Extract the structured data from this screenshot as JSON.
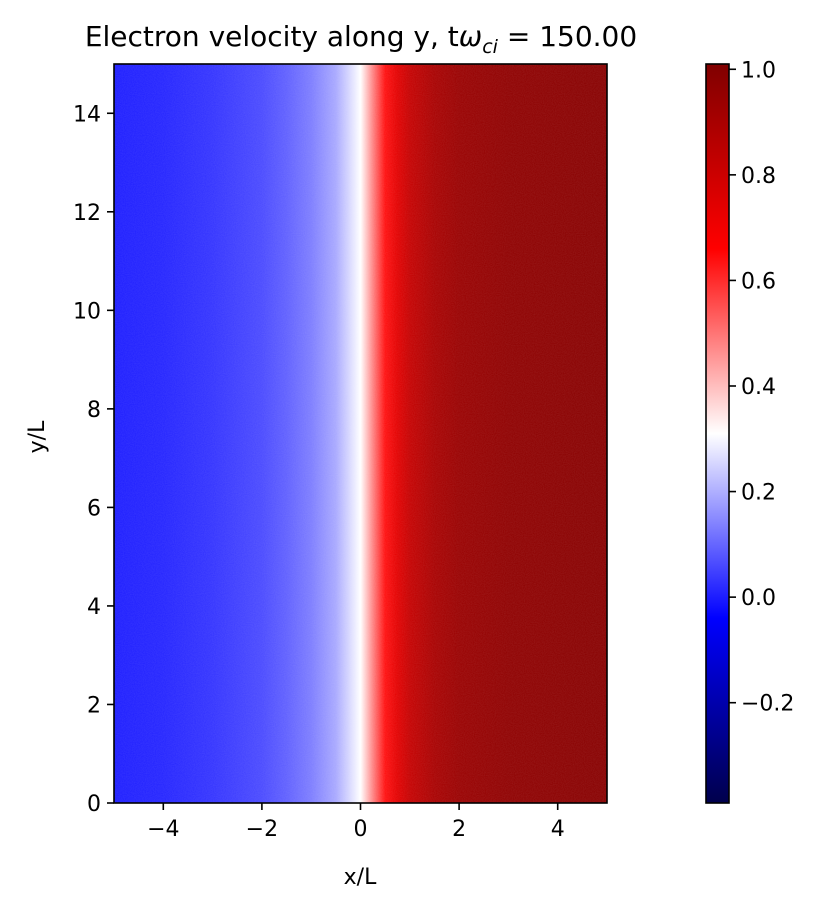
{
  "chart_data": {
    "type": "heatmap",
    "title": {
      "prefix": "Electron velocity along y, t",
      "omega": "ω",
      "subscript": "ci",
      "suffix": " = 150.00"
    },
    "xlabel": "x/L",
    "ylabel": "y/L",
    "xlim": [
      -5,
      5
    ],
    "ylim": [
      0,
      15
    ],
    "x_ticks": [
      -4,
      -2,
      0,
      2,
      4
    ],
    "y_ticks": [
      0,
      2,
      4,
      6,
      8,
      10,
      12,
      14
    ],
    "colorbar": {
      "range": [
        -0.39,
        1.01
      ],
      "ticks": [
        -0.2,
        0.0,
        0.2,
        0.4,
        0.6,
        0.8,
        1.0
      ],
      "tick_labels": [
        "−0.2",
        "0.0",
        "0.2",
        "0.4",
        "0.6",
        "0.8",
        "1.0"
      ],
      "colormap": "seismic"
    },
    "field_profile": {
      "description_axis": "x",
      "x": [
        -5,
        -4,
        -3,
        -2,
        -1.5,
        -1,
        -0.5,
        -0.25,
        0,
        0.25,
        0.5,
        0.75,
        1,
        1.5,
        2,
        3,
        4,
        5
      ],
      "value": [
        0.0,
        0.01,
        0.03,
        0.06,
        0.09,
        0.13,
        0.19,
        0.25,
        0.31,
        0.48,
        0.64,
        0.74,
        0.82,
        0.9,
        0.94,
        0.97,
        0.98,
        0.99
      ]
    },
    "grid": false
  }
}
